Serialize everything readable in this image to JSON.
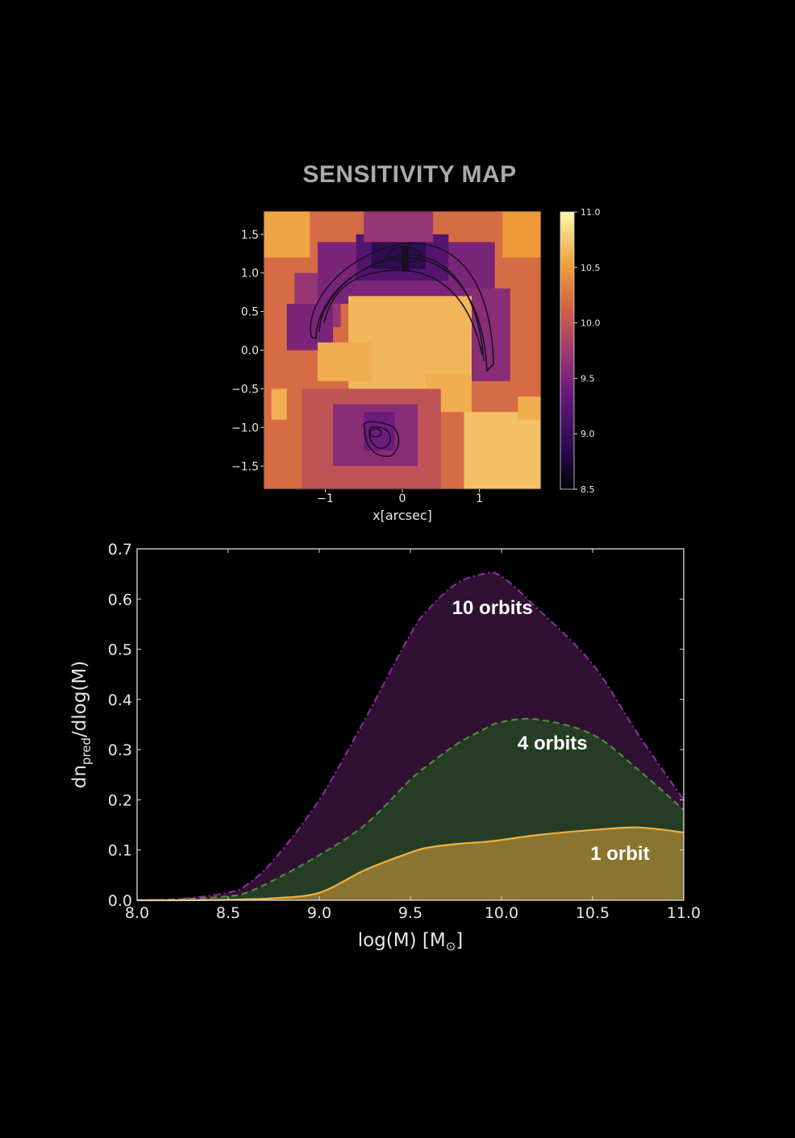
{
  "page": {
    "title": "SENSITIVITY MAP"
  },
  "colors": {
    "background": "#000000",
    "ten_orbits_fill": "#301033",
    "ten_orbits_line": "#8a2a9e",
    "four_orbits_fill": "#253d24",
    "four_orbits_line": "#4f8a3b",
    "one_orbit_fill": "#8a7530",
    "one_orbit_line": "#f0b040"
  },
  "chart_data": [
    {
      "type": "heatmap",
      "title": "SENSITIVITY MAP",
      "xlabel": "x[arcsec]",
      "ylabel": "",
      "xlim": [
        -1.8,
        1.8
      ],
      "ylim": [
        -1.8,
        1.8
      ],
      "xticks": [
        -1,
        0,
        1
      ],
      "xtick_labels": [
        "−1",
        "0",
        "1"
      ],
      "yticks": [
        1.5,
        1.0,
        0.5,
        0.0,
        -0.5,
        -1.0,
        -1.5
      ],
      "ytick_labels": [
        "1.5",
        "1.0",
        "0.5",
        "0.0",
        "−0.5",
        "−1.0",
        "−1.5"
      ],
      "colorbar": {
        "range": [
          8.5,
          11.0
        ],
        "ticks": [
          11.0,
          10.5,
          10.0,
          9.5,
          9.0,
          8.5
        ],
        "tick_labels": [
          "11.0",
          "10.5",
          "10.0",
          "9.5",
          "9.0",
          "8.5"
        ],
        "colormap": "inferno"
      },
      "grid": false,
      "cells": [
        {
          "x0": -1.8,
          "x1": 1.8,
          "y0": -1.8,
          "y1": 1.8,
          "v": 10.2
        },
        {
          "x0": -1.8,
          "x1": -1.2,
          "y0": 1.2,
          "y1": 1.8,
          "v": 10.55
        },
        {
          "x0": 1.3,
          "x1": 1.8,
          "y0": 1.2,
          "y1": 1.8,
          "v": 10.5
        },
        {
          "x0": -1.4,
          "x1": -0.8,
          "y0": 0.3,
          "y1": 1.0,
          "v": 9.7
        },
        {
          "x0": -1.5,
          "x1": -0.9,
          "y0": 0.0,
          "y1": 0.6,
          "v": 9.5
        },
        {
          "x0": -1.1,
          "x1": 1.2,
          "y0": 0.6,
          "y1": 1.4,
          "v": 9.5
        },
        {
          "x0": -0.6,
          "x1": 0.6,
          "y0": 0.9,
          "y1": 1.5,
          "v": 9.2
        },
        {
          "x0": -0.4,
          "x1": 0.3,
          "y0": 1.05,
          "y1": 1.45,
          "v": 8.9
        },
        {
          "x0": -0.5,
          "x1": 0.4,
          "y0": 1.4,
          "y1": 1.8,
          "v": 9.7
        },
        {
          "x0": 0.8,
          "x1": 1.4,
          "y0": -0.4,
          "y1": 0.8,
          "v": 9.6
        },
        {
          "x0": -0.7,
          "x1": 0.9,
          "y0": -0.5,
          "y1": 0.7,
          "v": 10.65
        },
        {
          "x0": -1.1,
          "x1": -0.4,
          "y0": -0.4,
          "y1": 0.1,
          "v": 10.6
        },
        {
          "x0": 0.3,
          "x1": 0.9,
          "y0": -0.8,
          "y1": -0.3,
          "v": 10.6
        },
        {
          "x0": -1.7,
          "x1": -1.5,
          "y0": -0.9,
          "y1": -0.5,
          "v": 10.6
        },
        {
          "x0": -1.3,
          "x1": 0.5,
          "y0": -1.8,
          "y1": -0.5,
          "v": 10.0
        },
        {
          "x0": -0.9,
          "x1": 0.2,
          "y0": -1.5,
          "y1": -0.7,
          "v": 9.6
        },
        {
          "x0": -0.5,
          "x1": -0.1,
          "y0": -1.3,
          "y1": -0.8,
          "v": 9.4
        },
        {
          "x0": 0.8,
          "x1": 1.8,
          "y0": -1.8,
          "y1": -0.8,
          "v": 10.7
        },
        {
          "x0": 1.5,
          "x1": 1.8,
          "y0": -0.9,
          "y1": -0.6,
          "v": 10.6
        }
      ]
    },
    {
      "type": "area",
      "title": "",
      "xlabel": "log(M) [M",
      "xlabel_sub": "⊙",
      "xlabel_end": "]",
      "ylabel": "dn",
      "ylabel_sub": "pred",
      "ylabel_end": "/dlog(M)",
      "xlim": [
        8.0,
        11.0
      ],
      "ylim": [
        0.0,
        0.7
      ],
      "xticks": [
        8.0,
        8.5,
        9.0,
        9.5,
        10.0,
        10.5,
        11.0
      ],
      "xtick_labels": [
        "8.0",
        "8.5",
        "9.0",
        "9.5",
        "10.0",
        "10.5",
        "11.0"
      ],
      "yticks": [
        0.0,
        0.1,
        0.2,
        0.3,
        0.4,
        0.5,
        0.6,
        0.7
      ],
      "ytick_labels": [
        "0.0",
        "0.1",
        "0.2",
        "0.3",
        "0.4",
        "0.5",
        "0.6",
        "0.7"
      ],
      "grid": false,
      "x": [
        8.0,
        8.25,
        8.5,
        8.6,
        8.75,
        9.0,
        9.25,
        9.5,
        9.6,
        9.75,
        9.9,
        10.0,
        10.2,
        10.5,
        10.75,
        11.0
      ],
      "series": [
        {
          "name": "10 orbits",
          "style": "dashdot",
          "values": [
            0.0,
            0.003,
            0.015,
            0.03,
            0.08,
            0.2,
            0.36,
            0.53,
            0.58,
            0.63,
            0.65,
            0.645,
            0.58,
            0.47,
            0.33,
            0.2
          ],
          "label_at": [
            9.95,
            0.57
          ]
        },
        {
          "name": "4 orbits",
          "style": "dashed",
          "values": [
            0.0,
            0.002,
            0.008,
            0.015,
            0.04,
            0.09,
            0.15,
            0.24,
            0.27,
            0.31,
            0.34,
            0.355,
            0.36,
            0.33,
            0.26,
            0.18
          ],
          "label_at": [
            10.28,
            0.3
          ]
        },
        {
          "name": "1 orbit",
          "style": "solid",
          "values": [
            0.0,
            0.0,
            0.001,
            0.002,
            0.004,
            0.015,
            0.06,
            0.095,
            0.105,
            0.112,
            0.116,
            0.12,
            0.13,
            0.14,
            0.145,
            0.135
          ],
          "label_at": [
            10.65,
            0.08
          ]
        }
      ]
    }
  ]
}
